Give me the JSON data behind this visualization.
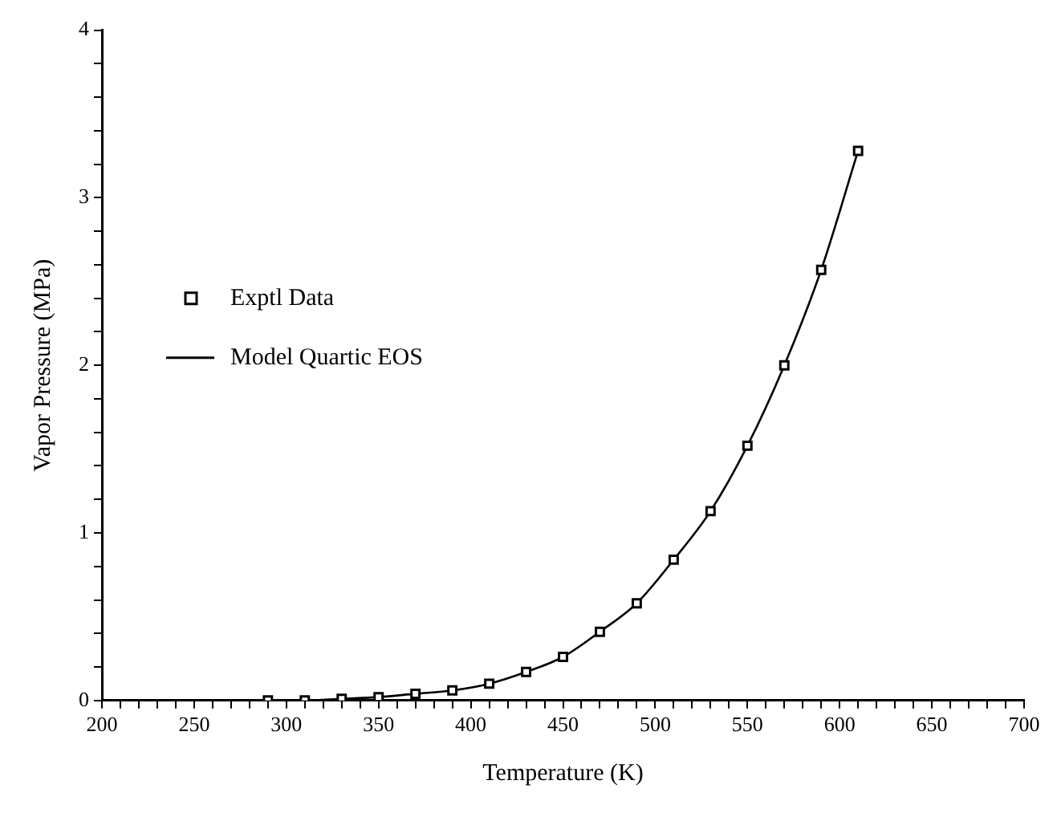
{
  "chart_data": {
    "type": "scatter",
    "xlabel": "Temperature (K)",
    "ylabel": "Vapor Pressure (MPa)",
    "xlim": [
      200,
      700
    ],
    "ylim": [
      0,
      4
    ],
    "xticks": [
      200,
      {
        "value": 210,
        "label": null
      },
      {
        "value": 220,
        "label": null
      },
      {
        "value": 230,
        "label": null
      },
      {
        "value": 240,
        "label": null
      },
      250,
      {
        "value": 260,
        "label": null
      },
      {
        "value": 270,
        "label": null
      },
      {
        "value": 280,
        "label": null
      },
      {
        "value": 290,
        "label": null
      },
      300,
      {
        "value": 310,
        "label": null
      },
      {
        "value": 320,
        "label": null
      },
      {
        "value": 330,
        "label": null
      },
      {
        "value": 340,
        "label": null
      },
      350,
      {
        "value": 360,
        "label": null
      },
      {
        "value": 370,
        "label": null
      },
      {
        "value": 380,
        "label": null
      },
      {
        "value": 390,
        "label": null
      },
      400,
      {
        "value": 410,
        "label": null
      },
      {
        "value": 420,
        "label": null
      },
      {
        "value": 430,
        "label": null
      },
      {
        "value": 440,
        "label": null
      },
      450,
      {
        "value": 460,
        "label": null
      },
      {
        "value": 470,
        "label": null
      },
      {
        "value": 480,
        "label": null
      },
      {
        "value": 490,
        "label": null
      },
      500,
      {
        "value": 510,
        "label": null
      },
      {
        "value": 520,
        "label": null
      },
      {
        "value": 530,
        "label": null
      },
      {
        "value": 540,
        "label": null
      },
      550,
      {
        "value": 560,
        "label": null
      },
      {
        "value": 570,
        "label": null
      },
      {
        "value": 580,
        "label": null
      },
      {
        "value": 590,
        "label": null
      },
      600,
      {
        "value": 610,
        "label": null
      },
      {
        "value": 620,
        "label": null
      },
      {
        "value": 630,
        "label": null
      },
      {
        "value": 640,
        "label": null
      },
      650,
      {
        "value": 660,
        "label": null
      },
      {
        "value": 670,
        "label": null
      },
      {
        "value": 680,
        "label": null
      },
      {
        "value": 690,
        "label": null
      },
      700
    ],
    "yticks": [
      0,
      {
        "value": 0.2,
        "label": null
      },
      {
        "value": 0.4,
        "label": null
      },
      {
        "value": 0.6,
        "label": null
      },
      {
        "value": 0.8,
        "label": null
      },
      1,
      {
        "value": 1.2,
        "label": null
      },
      {
        "value": 1.4,
        "label": null
      },
      {
        "value": 1.6,
        "label": null
      },
      {
        "value": 1.8,
        "label": null
      },
      2,
      {
        "value": 2.2,
        "label": null
      },
      {
        "value": 2.4,
        "label": null
      },
      {
        "value": 2.6,
        "label": null
      },
      {
        "value": 2.8,
        "label": null
      },
      3,
      {
        "value": 3.2,
        "label": null
      },
      {
        "value": 3.4,
        "label": null
      },
      {
        "value": 3.6,
        "label": null
      },
      {
        "value": 3.8,
        "label": null
      },
      4
    ],
    "grid": false,
    "legend": "left",
    "series": [
      {
        "name": "Exptl Data",
        "type": "scatter",
        "marker": "square",
        "color": "#000000",
        "x": [
          290,
          310,
          330,
          350,
          370,
          390,
          410,
          430,
          450,
          470,
          490,
          510,
          530,
          550,
          570,
          590,
          610
        ],
        "values": [
          0.0,
          0.0,
          0.01,
          0.02,
          0.04,
          0.06,
          0.1,
          0.17,
          0.26,
          0.41,
          0.58,
          0.84,
          1.13,
          1.52,
          2.0,
          2.57,
          3.28
        ]
      },
      {
        "name": "Model Quartic EOS",
        "type": "line",
        "marker": "none",
        "line_style": "solid",
        "color": "#000000",
        "x": [
          290,
          310,
          330,
          350,
          370,
          390,
          410,
          430,
          450,
          470,
          490,
          510,
          530,
          550,
          570,
          590,
          610
        ],
        "values": [
          0.0,
          0.0,
          0.01,
          0.02,
          0.04,
          0.06,
          0.1,
          0.17,
          0.26,
          0.41,
          0.58,
          0.84,
          1.13,
          1.52,
          2.0,
          2.57,
          3.28
        ]
      }
    ]
  }
}
